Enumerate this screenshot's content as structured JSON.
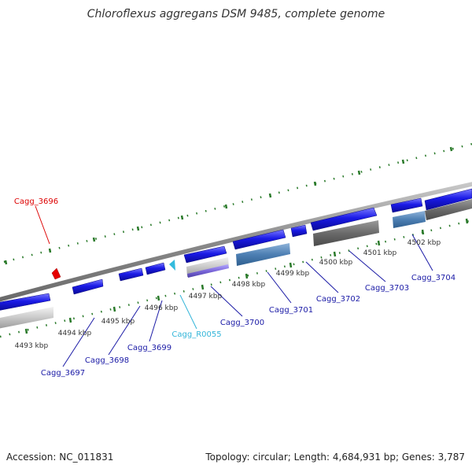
{
  "title": "Chloroflexus aggregans DSM 9485, complete genome",
  "footer": {
    "accession": "Accession: NC_011831",
    "summary": "Topology: circular; Length: 4,684,931 bp; Genes: 3,787"
  },
  "colors": {
    "gene_forward": "#1a1ae6",
    "gene_rna": "#33bbdd",
    "gene_selected": "#e60000",
    "label_gene": "#1a1aa6",
    "label_rna": "#33b5d9",
    "label_selected": "#dd0000",
    "tick": "#2a7a2a",
    "backbone": "#8a8a8a"
  },
  "scale_ticks": [
    {
      "label": "4493 kbp"
    },
    {
      "label": "4494 kbp"
    },
    {
      "label": "4495 kbp"
    },
    {
      "label": "4496 kbp"
    },
    {
      "label": "4497 kbp"
    },
    {
      "label": "4498 kbp"
    },
    {
      "label": "4499 kbp"
    },
    {
      "label": "4500 kbp"
    },
    {
      "label": "4501 kbp"
    },
    {
      "label": "4502 kbp"
    }
  ],
  "genes": [
    {
      "label": "Cagg_3696",
      "type": "selected"
    },
    {
      "label": "Cagg_3697",
      "type": "gene"
    },
    {
      "label": "Cagg_3698",
      "type": "gene"
    },
    {
      "label": "Cagg_3699",
      "type": "gene"
    },
    {
      "label": "Cagg_R0055",
      "type": "rna"
    },
    {
      "label": "Cagg_3700",
      "type": "gene"
    },
    {
      "label": "Cagg_3701",
      "type": "gene"
    },
    {
      "label": "Cagg_3702",
      "type": "gene"
    },
    {
      "label": "Cagg_3703",
      "type": "gene"
    },
    {
      "label": "Cagg_3704",
      "type": "gene"
    }
  ]
}
